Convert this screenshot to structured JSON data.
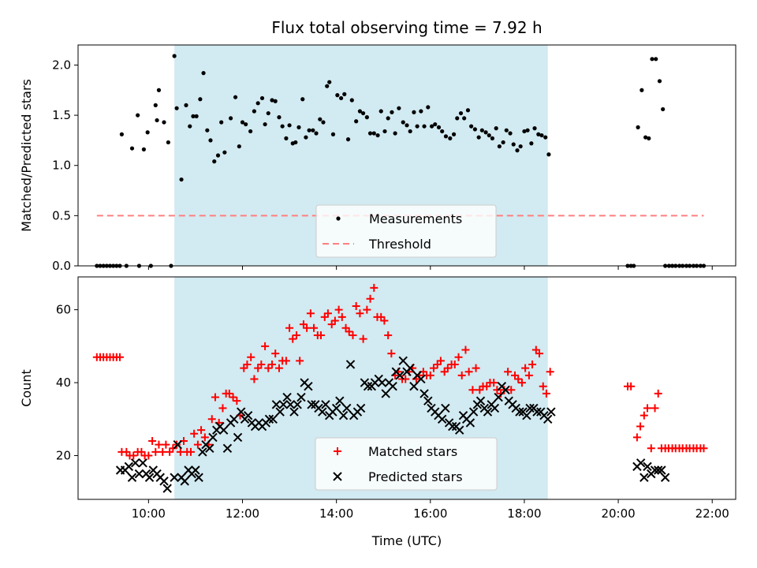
{
  "chart_data": {
    "type": "scatter",
    "title": "Flux total observing time = 7.92 h",
    "xlabel": "Time (UTC)",
    "x_unit": "hours UTC",
    "xlim": [
      8.5,
      22.5
    ],
    "xticks": [
      {
        "value": 10,
        "label": "10:00"
      },
      {
        "value": 12,
        "label": "12:00"
      },
      {
        "value": 14,
        "label": "14:00"
      },
      {
        "value": 16,
        "label": "16:00"
      },
      {
        "value": 18,
        "label": "18:00"
      },
      {
        "value": 20,
        "label": "20:00"
      },
      {
        "value": 22,
        "label": "22:00"
      }
    ],
    "observing_window": {
      "start": 10.55,
      "end": 18.5,
      "color": "#add8e6"
    },
    "panels": [
      {
        "id": "ratio",
        "ylabel": "Matched/Predicted stars",
        "ylim": [
          0,
          2.2
        ],
        "yticks": [
          {
            "value": 0.0,
            "label": "0.0"
          },
          {
            "value": 0.5,
            "label": "0.5"
          },
          {
            "value": 1.0,
            "label": "1.0"
          },
          {
            "value": 1.5,
            "label": "1.5"
          },
          {
            "value": 2.0,
            "label": "2.0"
          }
        ],
        "legend": {
          "placement": "lower-center",
          "entries": [
            "Measurements",
            "Threshold"
          ]
        },
        "series": [
          {
            "name": "Measurements",
            "style": "dot",
            "color": "#000000",
            "x": [
              8.9,
              8.97,
              9.04,
              9.11,
              9.18,
              9.25,
              9.32,
              9.39,
              9.43,
              9.53,
              9.65,
              9.77,
              9.8,
              9.9,
              9.98,
              10.05,
              10.15,
              10.18,
              10.22,
              10.33,
              10.42,
              10.48,
              10.55,
              10.6,
              10.7,
              10.8,
              10.88,
              10.95,
              11.02,
              11.1,
              11.17,
              11.25,
              11.32,
              11.4,
              11.48,
              11.55,
              11.62,
              11.75,
              11.85,
              11.93,
              12.0,
              12.07,
              12.17,
              12.25,
              12.33,
              12.42,
              12.48,
              12.55,
              12.63,
              12.7,
              12.78,
              12.85,
              12.93,
              13.0,
              13.07,
              13.13,
              13.2,
              13.28,
              13.35,
              13.42,
              13.5,
              13.57,
              13.65,
              13.72,
              13.8,
              13.85,
              13.93,
              14.02,
              14.1,
              14.17,
              14.25,
              14.33,
              14.42,
              14.5,
              14.57,
              14.65,
              14.72,
              14.8,
              14.88,
              14.95,
              15.03,
              15.1,
              15.18,
              15.25,
              15.33,
              15.42,
              15.5,
              15.57,
              15.65,
              15.72,
              15.8,
              15.87,
              15.95,
              16.03,
              16.1,
              16.18,
              16.25,
              16.33,
              16.42,
              16.5,
              16.57,
              16.65,
              16.72,
              16.8,
              16.87,
              16.95,
              17.03,
              17.1,
              17.18,
              17.25,
              17.32,
              17.4,
              17.47,
              17.55,
              17.62,
              17.7,
              17.77,
              17.85,
              17.92,
              18.0,
              18.07,
              18.15,
              18.22,
              18.3,
              18.37,
              18.45,
              18.52,
              20.2,
              20.27,
              20.33,
              20.42,
              20.5,
              20.58,
              20.65,
              20.72,
              20.8,
              20.88,
              20.95,
              21.0,
              21.08,
              21.15,
              21.22,
              21.3,
              21.37,
              21.45,
              21.52,
              21.6,
              21.67,
              21.75,
              21.82
            ],
            "y": [
              0,
              0,
              0,
              0,
              0,
              0,
              0,
              0,
              1.31,
              0,
              1.17,
              1.5,
              0,
              1.16,
              1.33,
              0,
              1.6,
              1.45,
              1.75,
              1.43,
              1.23,
              0,
              2.09,
              1.57,
              0.86,
              1.6,
              1.39,
              1.49,
              1.49,
              1.66,
              1.92,
              1.35,
              1.25,
              1.04,
              1.1,
              1.43,
              1.13,
              1.47,
              1.68,
              1.19,
              1.43,
              1.41,
              1.34,
              1.54,
              1.62,
              1.67,
              1.41,
              1.52,
              1.65,
              1.64,
              1.48,
              1.39,
              1.27,
              1.4,
              1.22,
              1.23,
              1.38,
              1.66,
              1.28,
              1.35,
              1.35,
              1.32,
              1.46,
              1.43,
              1.79,
              1.83,
              1.31,
              1.7,
              1.67,
              1.71,
              1.26,
              1.65,
              1.44,
              1.54,
              1.52,
              1.48,
              1.32,
              1.32,
              1.3,
              1.54,
              1.34,
              1.47,
              1.53,
              1.32,
              1.57,
              1.43,
              1.4,
              1.34,
              1.53,
              1.39,
              1.54,
              1.39,
              1.58,
              1.39,
              1.41,
              1.38,
              1.34,
              1.29,
              1.27,
              1.31,
              1.47,
              1.52,
              1.47,
              1.55,
              1.39,
              1.36,
              1.28,
              1.35,
              1.33,
              1.3,
              1.27,
              1.37,
              1.19,
              1.23,
              1.35,
              1.32,
              1.21,
              1.15,
              1.19,
              1.34,
              1.35,
              1.22,
              1.37,
              1.31,
              1.3,
              1.28,
              1.11,
              0,
              0,
              0,
              1.38,
              1.75,
              1.28,
              1.27,
              2.06,
              2.06,
              1.84,
              1.56,
              0,
              0,
              0,
              0,
              0,
              0,
              0,
              0,
              0,
              0,
              0,
              0
            ],
            "notes": ""
          },
          {
            "name": "Threshold",
            "style": "dashed-line",
            "color": "#ff7f7f",
            "x": [
              8.9,
              21.82
            ],
            "y": [
              0.5,
              0.5
            ]
          }
        ]
      },
      {
        "id": "counts",
        "ylabel": "Count",
        "ylim": [
          8,
          69
        ],
        "yticks": [
          {
            "value": 20,
            "label": "20"
          },
          {
            "value": 40,
            "label": "40"
          },
          {
            "value": 60,
            "label": "60"
          }
        ],
        "legend": {
          "placement": "lower-center",
          "entries": [
            "Matched stars",
            "Predicted stars"
          ]
        },
        "series": [
          {
            "name": "Matched stars",
            "style": "plus",
            "color": "#ff0000",
            "x": [
              8.9,
              8.97,
              9.04,
              9.11,
              9.18,
              9.25,
              9.32,
              9.39,
              9.43,
              9.53,
              9.6,
              9.68,
              9.77,
              9.85,
              9.92,
              10.0,
              10.08,
              10.15,
              10.22,
              10.3,
              10.37,
              10.45,
              10.52,
              10.6,
              10.68,
              10.75,
              10.82,
              10.9,
              10.97,
              11.05,
              11.12,
              11.2,
              11.28,
              11.35,
              11.42,
              11.5,
              11.58,
              11.65,
              11.72,
              11.8,
              11.88,
              11.95,
              12.03,
              12.1,
              12.18,
              12.25,
              12.33,
              12.4,
              12.48,
              12.55,
              12.63,
              12.7,
              12.78,
              12.85,
              12.93,
              13.0,
              13.07,
              13.15,
              13.22,
              13.3,
              13.37,
              13.45,
              13.52,
              13.6,
              13.67,
              13.75,
              13.82,
              13.9,
              13.97,
              14.05,
              14.12,
              14.2,
              14.27,
              14.35,
              14.42,
              14.5,
              14.57,
              14.65,
              14.72,
              14.8,
              14.87,
              14.95,
              15.02,
              15.1,
              15.17,
              15.25,
              15.32,
              15.4,
              15.47,
              15.55,
              15.62,
              15.7,
              15.77,
              15.85,
              15.92,
              16.0,
              16.07,
              16.15,
              16.22,
              16.3,
              16.37,
              16.45,
              16.52,
              16.6,
              16.67,
              16.75,
              16.82,
              16.9,
              16.97,
              17.05,
              17.12,
              17.2,
              17.27,
              17.35,
              17.42,
              17.5,
              17.57,
              17.65,
              17.72,
              17.8,
              17.87,
              17.95,
              18.02,
              18.1,
              18.17,
              18.25,
              18.32,
              18.4,
              18.47,
              18.55,
              20.2,
              20.27,
              20.4,
              20.47,
              20.55,
              20.62,
              20.7,
              20.78,
              20.85,
              20.92,
              21.0,
              21.07,
              21.15,
              21.22,
              21.3,
              21.37,
              21.45,
              21.52,
              21.6,
              21.67,
              21.75,
              21.82
            ],
            "y": [
              47,
              47,
              47,
              47,
              47,
              47,
              47,
              47,
              21,
              21,
              20,
              20,
              21,
              21,
              20,
              20,
              24,
              21,
              23,
              21,
              23,
              21,
              22,
              23,
              21,
              24,
              21,
              21,
              26,
              23,
              27,
              25,
              23,
              30,
              36,
              29,
              33,
              37,
              37,
              36,
              35,
              31,
              44,
              45,
              47,
              41,
              44,
              45,
              50,
              44,
              45,
              48,
              44,
              46,
              46,
              55,
              52,
              53,
              46,
              56,
              55,
              59,
              55,
              53,
              53,
              58,
              59,
              56,
              57,
              60,
              58,
              55,
              54,
              53,
              61,
              59,
              52,
              60,
              63,
              66,
              58,
              58,
              57,
              53,
              48,
              42,
              43,
              41,
              41,
              43,
              44,
              41,
              42,
              43,
              42,
              42,
              44,
              45,
              46,
              43,
              44,
              45,
              45,
              47,
              42,
              49,
              43,
              38,
              44,
              38,
              39,
              39,
              40,
              40,
              38,
              37,
              38,
              43,
              38,
              42,
              41,
              40,
              44,
              42,
              45,
              49,
              48,
              39,
              37,
              43,
              39,
              39,
              25,
              28,
              31,
              33,
              22,
              33,
              37,
              22,
              22,
              22,
              22,
              22,
              22,
              22,
              22,
              22,
              22,
              22,
              22,
              22
            ],
            "notes": ""
          },
          {
            "name": "Predicted stars",
            "style": "x",
            "color": "#000000",
            "x": [
              9.4,
              9.5,
              9.58,
              9.65,
              9.72,
              9.8,
              9.88,
              9.95,
              10.02,
              10.1,
              10.18,
              10.25,
              10.33,
              10.4,
              10.55,
              10.62,
              10.7,
              10.77,
              10.85,
              10.92,
              11.0,
              11.07,
              11.15,
              11.22,
              11.3,
              11.37,
              11.45,
              11.52,
              11.6,
              11.68,
              11.75,
              11.82,
              11.9,
              11.97,
              12.05,
              12.12,
              12.2,
              12.27,
              12.35,
              12.42,
              12.5,
              12.57,
              12.65,
              12.72,
              12.8,
              12.87,
              12.95,
              13.02,
              13.1,
              13.17,
              13.25,
              13.32,
              13.4,
              13.47,
              13.55,
              13.62,
              13.7,
              13.77,
              13.85,
              13.92,
              14.0,
              14.07,
              14.15,
              14.22,
              14.3,
              14.37,
              14.45,
              14.52,
              14.6,
              14.67,
              14.75,
              14.82,
              14.9,
              14.97,
              15.05,
              15.12,
              15.2,
              15.27,
              15.35,
              15.42,
              15.5,
              15.57,
              15.65,
              15.72,
              15.8,
              15.87,
              15.95,
              16.02,
              16.1,
              16.17,
              16.25,
              16.32,
              16.4,
              16.47,
              16.55,
              16.62,
              16.7,
              16.77,
              16.85,
              16.92,
              17.0,
              17.07,
              17.15,
              17.22,
              17.3,
              17.37,
              17.45,
              17.52,
              17.6,
              17.67,
              17.75,
              17.82,
              17.9,
              17.97,
              18.05,
              18.12,
              18.2,
              18.27,
              18.35,
              18.42,
              18.5,
              18.57,
              20.4,
              20.48,
              20.55,
              20.62,
              20.7,
              20.78,
              20.85,
              20.92,
              21.0
            ],
            "y": [
              16,
              16,
              17,
              14,
              18,
              15,
              18,
              15,
              14,
              16,
              15,
              14,
              13,
              11,
              14,
              23,
              14,
              13,
              16,
              15,
              16,
              14,
              21,
              23,
              22,
              25,
              27,
              28,
              27,
              22,
              29,
              30,
              25,
              32,
              30,
              31,
              29,
              28,
              29,
              28,
              29,
              30,
              30,
              34,
              32,
              34,
              36,
              34,
              32,
              34,
              36,
              40,
              39,
              34,
              34,
              33,
              32,
              34,
              31,
              32,
              33,
              35,
              31,
              33,
              45,
              31,
              32,
              33,
              40,
              39,
              39,
              40,
              41,
              40,
              37,
              40,
              39,
              43,
              42,
              46,
              43,
              44,
              39,
              42,
              41,
              37,
              35,
              33,
              32,
              31,
              30,
              33,
              29,
              28,
              28,
              27,
              31,
              30,
              29,
              32,
              34,
              35,
              33,
              32,
              34,
              33,
              36,
              39,
              38,
              35,
              34,
              33,
              32,
              32,
              31,
              33,
              33,
              32,
              32,
              31,
              30,
              32,
              17,
              18,
              14,
              17,
              15,
              16,
              16,
              16,
              14
            ]
          }
        ]
      }
    ]
  }
}
